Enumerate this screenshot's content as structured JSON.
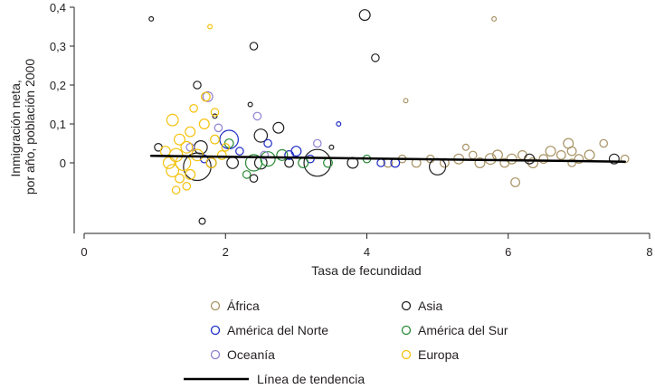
{
  "chart_data": {
    "type": "scatter",
    "xlabel": "Tasa de fecundidad",
    "ylabel_lines": [
      "Inmigración neta,",
      "por año, población 2000"
    ],
    "xlim": [
      0,
      8
    ],
    "ylim": [
      -0.15,
      0.4
    ],
    "x_ticks": [
      0,
      2,
      4,
      6,
      8
    ],
    "x_tick_labels": [
      "0",
      "2",
      "4",
      "6",
      "8"
    ],
    "y_ticks": [
      0,
      0.1,
      0.2,
      0.3,
      0.4
    ],
    "y_tick_labels": [
      "0",
      "0,1",
      "0,2",
      "0,3",
      "0,4"
    ],
    "grid": false,
    "legend_position": "bottom",
    "series": [
      {
        "name": "África",
        "color": "#a89263",
        "points": [
          {
            "x": 5.8,
            "y": 0.37,
            "size": 1
          },
          {
            "x": 4.55,
            "y": 0.16,
            "size": 1
          },
          {
            "x": 6.1,
            "y": -0.05,
            "size": 4
          },
          {
            "x": 4.3,
            "y": 0.0,
            "size": 4
          },
          {
            "x": 4.5,
            "y": 0.01,
            "size": 3
          },
          {
            "x": 4.7,
            "y": 0.0,
            "size": 4
          },
          {
            "x": 4.9,
            "y": 0.01,
            "size": 3
          },
          {
            "x": 5.1,
            "y": 0.0,
            "size": 4
          },
          {
            "x": 5.3,
            "y": 0.01,
            "size": 5
          },
          {
            "x": 5.5,
            "y": 0.02,
            "size": 3
          },
          {
            "x": 5.6,
            "y": 0.0,
            "size": 5
          },
          {
            "x": 5.75,
            "y": 0.01,
            "size": 6
          },
          {
            "x": 5.85,
            "y": 0.02,
            "size": 5
          },
          {
            "x": 5.95,
            "y": 0.0,
            "size": 4
          },
          {
            "x": 6.05,
            "y": 0.01,
            "size": 5
          },
          {
            "x": 6.2,
            "y": 0.02,
            "size": 4
          },
          {
            "x": 6.35,
            "y": 0.0,
            "size": 5
          },
          {
            "x": 6.5,
            "y": 0.01,
            "size": 4
          },
          {
            "x": 6.6,
            "y": 0.03,
            "size": 5
          },
          {
            "x": 6.75,
            "y": 0.02,
            "size": 4
          },
          {
            "x": 6.85,
            "y": 0.05,
            "size": 5
          },
          {
            "x": 6.9,
            "y": 0.03,
            "size": 4
          },
          {
            "x": 7.0,
            "y": 0.01,
            "size": 4
          },
          {
            "x": 7.15,
            "y": 0.02,
            "size": 5
          },
          {
            "x": 7.35,
            "y": 0.05,
            "size": 3
          },
          {
            "x": 7.65,
            "y": 0.01,
            "size": 3
          },
          {
            "x": 5.4,
            "y": 0.04,
            "size": 2
          },
          {
            "x": 6.9,
            "y": 0.0,
            "size": 3
          }
        ]
      },
      {
        "name": "Asia",
        "color": "#231f20",
        "points": [
          {
            "x": 0.95,
            "y": 0.37,
            "size": 1
          },
          {
            "x": 2.4,
            "y": 0.3,
            "size": 3
          },
          {
            "x": 3.97,
            "y": 0.38,
            "size": 6
          },
          {
            "x": 4.12,
            "y": 0.27,
            "size": 3
          },
          {
            "x": 1.6,
            "y": 0.2,
            "size": 3
          },
          {
            "x": 2.35,
            "y": 0.15,
            "size": 1
          },
          {
            "x": 2.75,
            "y": 0.09,
            "size": 6
          },
          {
            "x": 2.5,
            "y": 0.07,
            "size": 9
          },
          {
            "x": 1.05,
            "y": 0.04,
            "size": 3
          },
          {
            "x": 1.65,
            "y": 0.04,
            "size": 9
          },
          {
            "x": 1.6,
            "y": -0.01,
            "size": 40
          },
          {
            "x": 3.3,
            "y": 0.0,
            "size": 38
          },
          {
            "x": 2.1,
            "y": 0.0,
            "size": 7
          },
          {
            "x": 2.5,
            "y": 0.0,
            "size": 8
          },
          {
            "x": 3.8,
            "y": 0.0,
            "size": 6
          },
          {
            "x": 5.0,
            "y": -0.01,
            "size": 14
          },
          {
            "x": 6.3,
            "y": 0.01,
            "size": 5
          },
          {
            "x": 7.5,
            "y": 0.01,
            "size": 5
          },
          {
            "x": 1.67,
            "y": -0.15,
            "size": 2
          },
          {
            "x": 3.5,
            "y": 0.04,
            "size": 1
          },
          {
            "x": 2.4,
            "y": -0.04,
            "size": 3
          },
          {
            "x": 1.85,
            "y": 0.12,
            "size": 1
          },
          {
            "x": 1.8,
            "y": 0.0,
            "size": 5
          },
          {
            "x": 2.9,
            "y": 0.0,
            "size": 4
          }
        ]
      },
      {
        "name": "América del Norte",
        "color": "#1f2dc5",
        "points": [
          {
            "x": 2.05,
            "y": 0.06,
            "size": 18
          },
          {
            "x": 2.2,
            "y": 0.03,
            "size": 3
          },
          {
            "x": 2.9,
            "y": 0.02,
            "size": 4
          },
          {
            "x": 3.2,
            "y": 0.01,
            "size": 3
          },
          {
            "x": 4.2,
            "y": 0.0,
            "size": 3
          },
          {
            "x": 4.4,
            "y": 0.0,
            "size": 4
          },
          {
            "x": 3.6,
            "y": 0.1,
            "size": 1
          },
          {
            "x": 2.6,
            "y": 0.05,
            "size": 3
          },
          {
            "x": 1.7,
            "y": 0.01,
            "size": 3
          },
          {
            "x": 3.0,
            "y": 0.03,
            "size": 5
          }
        ]
      },
      {
        "name": "América del Sur",
        "color": "#2a8a37",
        "points": [
          {
            "x": 2.05,
            "y": 0.05,
            "size": 4
          },
          {
            "x": 2.4,
            "y": 0.0,
            "size": 14
          },
          {
            "x": 2.6,
            "y": 0.01,
            "size": 11
          },
          {
            "x": 2.8,
            "y": 0.02,
            "size": 6
          },
          {
            "x": 3.1,
            "y": 0.0,
            "size": 5
          },
          {
            "x": 3.45,
            "y": 0.0,
            "size": 4
          },
          {
            "x": 4.0,
            "y": 0.01,
            "size": 3
          },
          {
            "x": 2.3,
            "y": -0.03,
            "size": 3
          }
        ]
      },
      {
        "name": "Oceanía",
        "color": "#8e7fcf",
        "points": [
          {
            "x": 1.75,
            "y": 0.17,
            "size": 5
          },
          {
            "x": 1.9,
            "y": 0.09,
            "size": 3
          },
          {
            "x": 2.45,
            "y": 0.12,
            "size": 3
          },
          {
            "x": 3.3,
            "y": 0.05,
            "size": 3
          },
          {
            "x": 1.5,
            "y": 0.04,
            "size": 3
          },
          {
            "x": 2.55,
            "y": 0.02,
            "size": 3
          }
        ]
      },
      {
        "name": "Europa",
        "color": "#f4c20d",
        "points": [
          {
            "x": 1.78,
            "y": 0.35,
            "size": 1
          },
          {
            "x": 1.72,
            "y": 0.17,
            "size": 4
          },
          {
            "x": 1.55,
            "y": 0.14,
            "size": 3
          },
          {
            "x": 1.85,
            "y": 0.13,
            "size": 3
          },
          {
            "x": 1.25,
            "y": 0.11,
            "size": 7
          },
          {
            "x": 1.7,
            "y": 0.1,
            "size": 5
          },
          {
            "x": 1.5,
            "y": 0.08,
            "size": 5
          },
          {
            "x": 1.35,
            "y": 0.06,
            "size": 6
          },
          {
            "x": 1.85,
            "y": 0.06,
            "size": 4
          },
          {
            "x": 1.45,
            "y": 0.04,
            "size": 7
          },
          {
            "x": 1.3,
            "y": 0.02,
            "size": 9
          },
          {
            "x": 1.2,
            "y": 0.0,
            "size": 7
          },
          {
            "x": 1.4,
            "y": 0.0,
            "size": 12
          },
          {
            "x": 1.6,
            "y": 0.02,
            "size": 7
          },
          {
            "x": 1.25,
            "y": -0.02,
            "size": 8
          },
          {
            "x": 1.5,
            "y": -0.03,
            "size": 5
          },
          {
            "x": 1.35,
            "y": -0.04,
            "size": 4
          },
          {
            "x": 1.8,
            "y": 0.0,
            "size": 5
          },
          {
            "x": 1.95,
            "y": 0.02,
            "size": 4
          },
          {
            "x": 1.3,
            "y": -0.07,
            "size": 3
          },
          {
            "x": 1.45,
            "y": -0.06,
            "size": 3
          },
          {
            "x": 2.0,
            "y": 0.04,
            "size": 3
          },
          {
            "x": 1.15,
            "y": 0.03,
            "size": 5
          }
        ]
      }
    ],
    "trend": {
      "name": "Línea de tendencia",
      "x": [
        0.95,
        7.65
      ],
      "y": [
        0.018,
        0.003
      ],
      "color": "#000000"
    },
    "legend": [
      {
        "label": "África",
        "color": "#a89263"
      },
      {
        "label": "Asia",
        "color": "#231f20"
      },
      {
        "label": "América del Norte",
        "color": "#1f2dc5"
      },
      {
        "label": "América del Sur",
        "color": "#2a8a37"
      },
      {
        "label": "Oceanía",
        "color": "#8e7fcf"
      },
      {
        "label": "Europa",
        "color": "#f4c20d"
      },
      {
        "label": "Línea de tendencia",
        "color": "#000000"
      }
    ]
  }
}
